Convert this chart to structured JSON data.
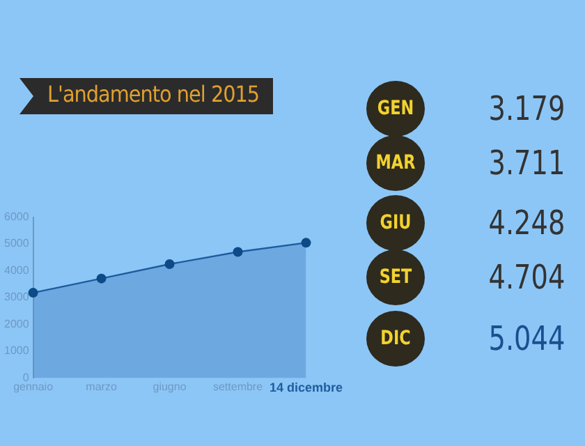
{
  "chart_data": [
    {
      "type": "area",
      "title": "L'andamento nel 2015",
      "categories": [
        "gennaio",
        "marzo",
        "giugno",
        "settembre",
        "14 dicembre"
      ],
      "values": [
        3179,
        3711,
        4248,
        4704,
        5044
      ],
      "color": "#1f5c9e",
      "ylim": [
        0,
        6000
      ],
      "yticks": [
        0,
        1000,
        2000,
        3000,
        4000,
        5000,
        6000
      ],
      "grid": false,
      "marker": "circle"
    },
    {
      "type": "other",
      "categories": [
        "GEN",
        "MAR",
        "GIU",
        "SET",
        "DIC"
      ],
      "value_labels": [
        "3.179",
        "3.711",
        "4.248",
        "4.704",
        "5.044"
      ],
      "colors": [
        "#333333",
        "#333333",
        "#333333",
        "#333333",
        "#1a4f8f"
      ]
    }
  ]
}
